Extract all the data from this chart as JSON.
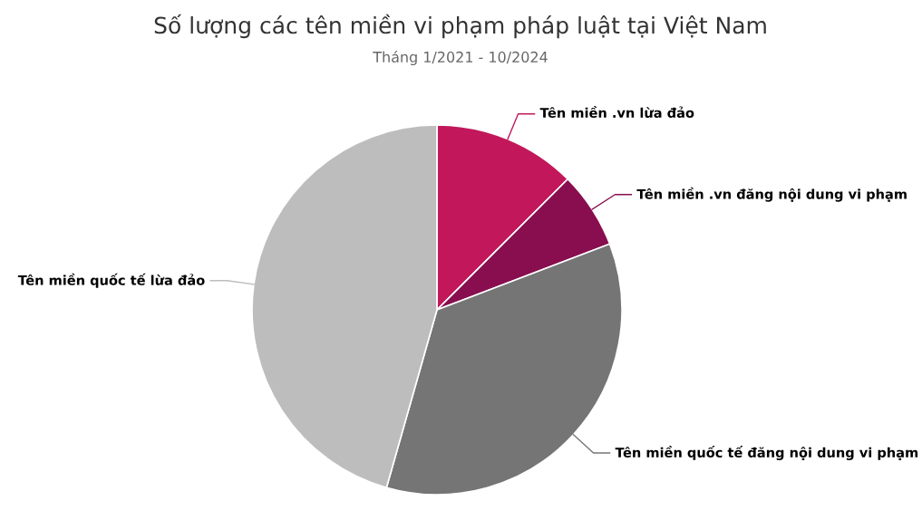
{
  "chart_data": {
    "type": "pie",
    "title": "Số lượng các tên miền vi phạm pháp luật tại Việt Nam",
    "subtitle": "Tháng 1/2021 - 10/2024",
    "categories": [
      "Tên miền .vn lừa đảo",
      "Tên miền .vn đăng nội dung vi phạm",
      "Tên miền quốc tế đăng nội dung vi phạm",
      "Tên miền quốc tế lừa đảo"
    ],
    "values": [
      12.5,
      6.7,
      35.2,
      45.6
    ],
    "colors": [
      "#c2185b",
      "#880e4f",
      "#757575",
      "#bdbdbd"
    ],
    "legend": false
  }
}
